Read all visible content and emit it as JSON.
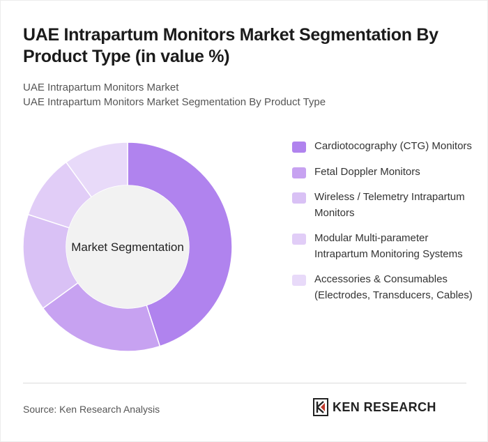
{
  "title": "UAE Intrapartum Monitors Market Segmentation By Product Type (in value %)",
  "subtitle_lines": [
    "UAE Intrapartum Monitors Market",
    "UAE Intrapartum Monitors Market Segmentation By Product Type"
  ],
  "footer": {
    "source": "Source: Ken Research Analysis",
    "brand": "KEN RESEARCH"
  },
  "chart_data": {
    "type": "pie",
    "variant": "donut",
    "center_label": "Market Segmentation",
    "categories": [
      "Cardiotocography (CTG) Monitors",
      "Fetal Doppler Monitors",
      "Wireless / Telemetry Intrapartum Monitors",
      "Modular Multi-parameter Intrapartum Monitoring Systems",
      "Accessories & Consumables (Electrodes, Transducers, Cables)"
    ],
    "values": [
      45,
      20,
      15,
      10,
      10
    ],
    "colors": [
      "#b083ee",
      "#c7a2f1",
      "#d9c1f5",
      "#e1cdf7",
      "#e8daf9"
    ],
    "legend_position": "right"
  }
}
